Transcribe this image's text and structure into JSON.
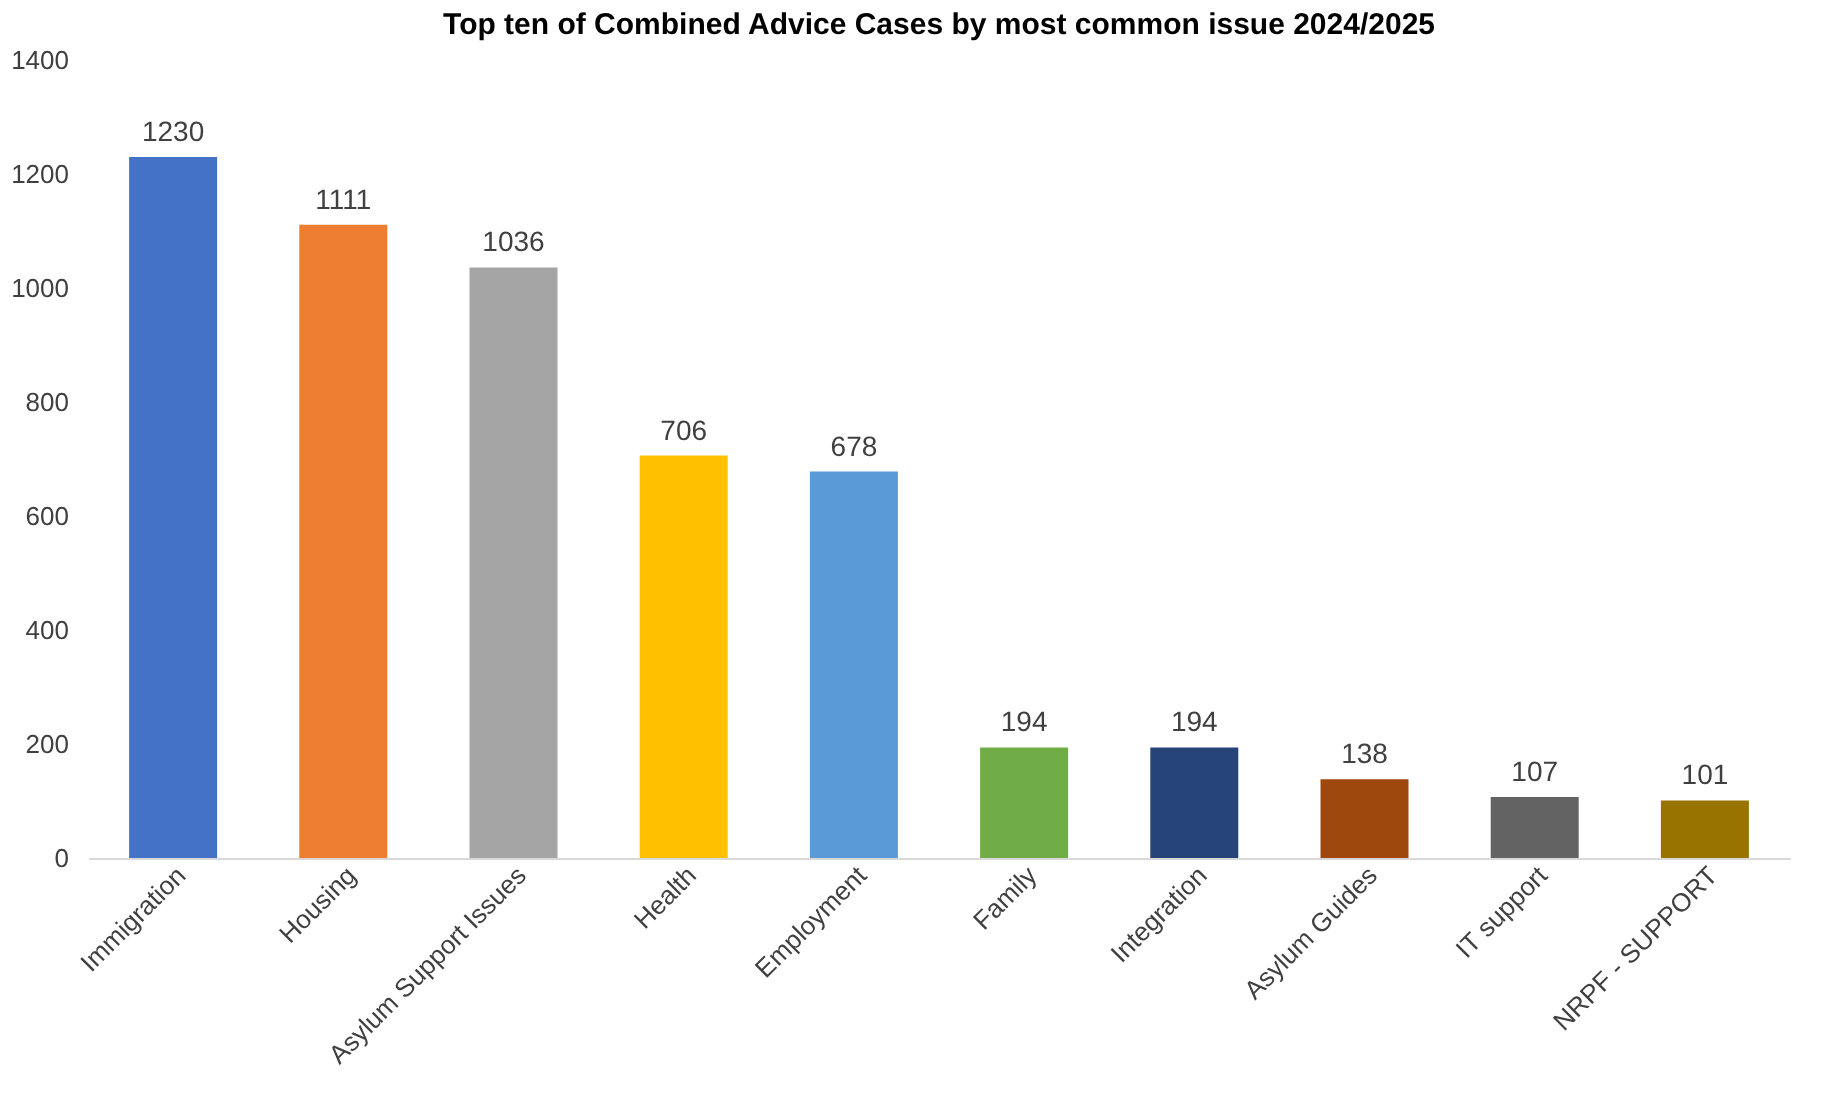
{
  "chart_data": {
    "type": "bar",
    "title": "Top ten of Combined Advice Cases by most common issue 2024/2025",
    "categories": [
      "Immigration",
      "Housing",
      "Asylum Support Issues",
      "Health",
      "Employment",
      "Family",
      "Integration",
      "Asylum Guides",
      "IT support",
      "NRPF - SUPPORT"
    ],
    "values": [
      1230,
      1111,
      1036,
      706,
      678,
      194,
      194,
      138,
      107,
      101
    ],
    "colors": [
      "#4472c4",
      "#ed7d31",
      "#a5a5a5",
      "#ffc000",
      "#5b9bd5",
      "#70ad47",
      "#264478",
      "#9e480e",
      "#636363",
      "#997300"
    ],
    "ylim": [
      0,
      1400
    ],
    "yticks": [
      0,
      200,
      400,
      600,
      800,
      1000,
      1200,
      1400
    ],
    "data_labels": true,
    "grid": false
  }
}
